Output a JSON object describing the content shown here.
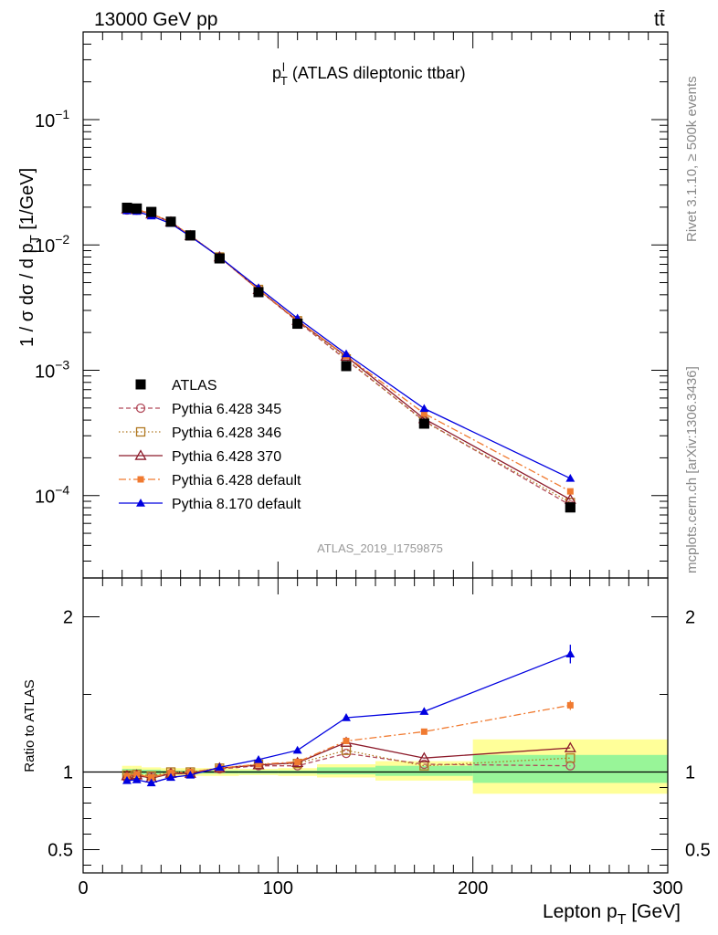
{
  "header": {
    "left": "13000 GeV pp",
    "right": "tt̄"
  },
  "side_labels": {
    "rivet": "Rivet 3.1.10, ≥ 500k events",
    "mcplots": "mcplots.cern.ch [arXiv:1306.3436]"
  },
  "chart_data": [
    {
      "type": "scatter",
      "panel": "main",
      "title": "p_T^l (ATLAS dileptonic ttbar)",
      "title_parts": {
        "p": "p",
        "sub": "T",
        "sup": "l",
        "rest": " (ATLAS dileptonic ttbar)"
      },
      "analysis_id": "ATLAS_2019_I1759875",
      "ylabel": "1 / σ  dσ / d p_T [1/GeV]",
      "ylabel_parts": {
        "pre": "1 / σ  dσ / d p",
        "sub": "T",
        "post": " [1/GeV]"
      },
      "yscale": "log",
      "ylim": [
        2.2e-05,
        0.5
      ],
      "xlim": [
        0,
        300
      ],
      "y_tick_labels": [
        {
          "base": "10",
          "exp": "−4",
          "value": 0.0001
        },
        {
          "base": "10",
          "exp": "−3",
          "value": 0.001
        },
        {
          "base": "10",
          "exp": "−2",
          "value": 0.01
        },
        {
          "base": "10",
          "exp": "−1",
          "value": 0.1
        }
      ],
      "legend_position": "lower-left",
      "x": [
        22.5,
        27.5,
        35,
        45,
        55,
        70,
        90,
        110,
        135,
        175,
        250
      ],
      "series": [
        {
          "name": "ATLAS",
          "color": "#000000",
          "marker": "square-filled",
          "line": "none",
          "values": [
            0.0198,
            0.0195,
            0.0183,
            0.0153,
            0.0119,
            0.0078,
            0.0042,
            0.00235,
            0.00108,
            0.000375,
            8.05e-05
          ]
        },
        {
          "name": "Pythia 6.428 345",
          "color": "#b24a5a",
          "marker": "circle-open",
          "line": "dashed",
          "values": [
            0.019,
            0.0189,
            0.0177,
            0.0152,
            0.0118,
            0.008,
            0.00438,
            0.00245,
            0.00121,
            0.000395,
            8.38e-05
          ]
        },
        {
          "name": "Pythia 6.428 346",
          "color": "#b07820",
          "marker": "square-open",
          "line": "dotted",
          "values": [
            0.0193,
            0.0192,
            0.0178,
            0.0153,
            0.0119,
            0.008,
            0.00441,
            0.00248,
            0.00123,
            0.00039,
            8.8e-05
          ]
        },
        {
          "name": "Pythia 6.428 370",
          "color": "#8c1a2a",
          "marker": "triangle-open",
          "line": "solid",
          "values": [
            0.0193,
            0.0191,
            0.0176,
            0.0152,
            0.0118,
            0.008,
            0.00439,
            0.00249,
            0.00129,
            0.00041,
            9.3e-05
          ]
        },
        {
          "name": "Pythia 6.428 default",
          "color": "#f07a30",
          "marker": "square-filled-small",
          "line": "dashdot",
          "values": [
            0.0193,
            0.0192,
            0.0177,
            0.0152,
            0.0119,
            0.008,
            0.0044,
            0.0025,
            0.0013,
            0.000452,
            0.000108
          ]
        },
        {
          "name": "Pythia 8.170 default",
          "color": "#0000e0",
          "marker": "triangle-filled",
          "line": "solid",
          "values": [
            0.0187,
            0.0185,
            0.017,
            0.0148,
            0.0117,
            0.008,
            0.00455,
            0.0026,
            0.00135,
            0.000495,
            0.000137
          ]
        }
      ]
    },
    {
      "type": "line",
      "panel": "ratio",
      "ylabel": "Ratio to ATLAS",
      "ylim": [
        0.35,
        2.25
      ],
      "xlim": [
        0,
        300
      ],
      "xlabel": "Lepton p_T [GeV]",
      "xlabel_parts": {
        "pre": "Lepton p",
        "sub": "T",
        "post": " [GeV]"
      },
      "x_ticks": [
        0,
        100,
        200,
        300
      ],
      "y_ticks": [
        0.5,
        1,
        2
      ],
      "reference_line": 1.0,
      "bands": [
        {
          "x0": 20,
          "x1": 25,
          "y_yellow": [
            0.96,
            1.04
          ],
          "y_green": [
            0.98,
            1.02
          ]
        },
        {
          "x0": 25,
          "x1": 30,
          "y_yellow": [
            0.96,
            1.04
          ],
          "y_green": [
            0.98,
            1.02
          ]
        },
        {
          "x0": 30,
          "x1": 40,
          "y_yellow": [
            0.97,
            1.03
          ],
          "y_green": [
            0.985,
            1.015
          ]
        },
        {
          "x0": 40,
          "x1": 50,
          "y_yellow": [
            0.975,
            1.025
          ],
          "y_green": [
            0.99,
            1.01
          ]
        },
        {
          "x0": 50,
          "x1": 60,
          "y_yellow": [
            0.975,
            1.025
          ],
          "y_green": [
            0.99,
            1.01
          ]
        },
        {
          "x0": 60,
          "x1": 80,
          "y_yellow": [
            0.975,
            1.025
          ],
          "y_green": [
            0.99,
            1.01
          ]
        },
        {
          "x0": 80,
          "x1": 100,
          "y_yellow": [
            0.98,
            1.02
          ],
          "y_green": [
            0.99,
            1.01
          ]
        },
        {
          "x0": 100,
          "x1": 120,
          "y_yellow": [
            0.975,
            1.025
          ],
          "y_green": [
            0.99,
            1.01
          ]
        },
        {
          "x0": 120,
          "x1": 150,
          "y_yellow": [
            0.965,
            1.05
          ],
          "y_green": [
            0.985,
            1.03
          ]
        },
        {
          "x0": 150,
          "x1": 200,
          "y_yellow": [
            0.945,
            1.07
          ],
          "y_green": [
            0.975,
            1.04
          ]
        },
        {
          "x0": 200,
          "x1": 300,
          "y_yellow": [
            0.86,
            1.21
          ],
          "y_green": [
            0.93,
            1.11
          ]
        }
      ],
      "x": [
        22.5,
        27.5,
        35,
        45,
        55,
        70,
        90,
        110,
        135,
        175,
        250
      ],
      "series": [
        {
          "name": "Pythia 6.428 345",
          "color": "#b24a5a",
          "values": [
            0.96,
            0.97,
            0.97,
            0.99,
            0.99,
            1.02,
            1.04,
            1.04,
            1.12,
            1.05,
            1.04
          ]
        },
        {
          "name": "Pythia 6.428 346",
          "color": "#b07820",
          "values": [
            0.98,
            0.985,
            0.975,
            1.0,
            1.0,
            1.025,
            1.05,
            1.055,
            1.14,
            1.04,
            1.09
          ]
        },
        {
          "name": "Pythia 6.428 370",
          "color": "#8c1a2a",
          "values": [
            0.975,
            0.98,
            0.96,
            0.99,
            0.99,
            1.025,
            1.045,
            1.06,
            1.19,
            1.09,
            1.155
          ]
        },
        {
          "name": "Pythia 6.428 default",
          "color": "#f07a30",
          "values": [
            0.975,
            0.985,
            0.965,
            0.995,
            1.0,
            1.025,
            1.05,
            1.065,
            1.2,
            1.26,
            1.43
          ]
        },
        {
          "name": "Pythia 8.170 default",
          "color": "#0000e0",
          "values": [
            0.945,
            0.95,
            0.93,
            0.965,
            0.98,
            1.03,
            1.08,
            1.14,
            1.35,
            1.39,
            1.76
          ]
        }
      ]
    }
  ]
}
